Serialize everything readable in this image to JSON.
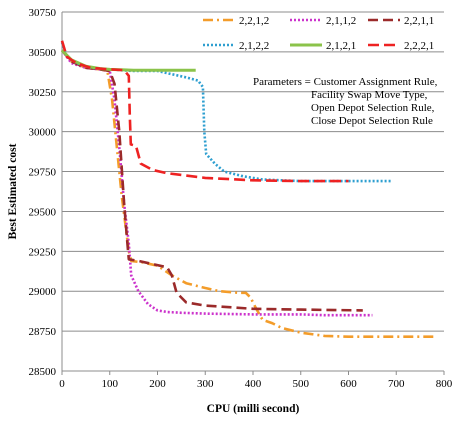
{
  "chart_data": {
    "type": "line",
    "title": "",
    "xlabel": "CPU (milli second)",
    "ylabel": "Best Estimated cost",
    "xlim": [
      0,
      800
    ],
    "ylim": [
      28500,
      30750
    ],
    "xticks": [
      0,
      100,
      200,
      300,
      400,
      500,
      600,
      700,
      800
    ],
    "yticks": [
      28500,
      28750,
      29000,
      29250,
      29500,
      29750,
      30000,
      30250,
      30500,
      30750
    ],
    "grid": "horizontal",
    "legend_position": "top-right",
    "annotation": [
      "Parameters = Customer Assignment Rule,",
      "Facility Swap Move Type,",
      "Open Depot Selection Rule,",
      "Close Depot Selection Rule"
    ],
    "series": [
      {
        "name": "2,2,1,2",
        "color": "#F39C2A",
        "dash": "dashdot",
        "points": [
          [
            0,
            30510
          ],
          [
            20,
            30440
          ],
          [
            50,
            30400
          ],
          [
            80,
            30390
          ],
          [
            95,
            30380
          ],
          [
            105,
            30200
          ],
          [
            115,
            29900
          ],
          [
            125,
            29600
          ],
          [
            140,
            29250
          ],
          [
            145,
            29190
          ],
          [
            170,
            29180
          ],
          [
            200,
            29160
          ],
          [
            230,
            29100
          ],
          [
            260,
            29050
          ],
          [
            300,
            29020
          ],
          [
            330,
            29000
          ],
          [
            370,
            28990
          ],
          [
            385,
            28990
          ],
          [
            395,
            28960
          ],
          [
            405,
            28900
          ],
          [
            420,
            28820
          ],
          [
            440,
            28800
          ],
          [
            460,
            28770
          ],
          [
            500,
            28740
          ],
          [
            550,
            28720
          ],
          [
            600,
            28715
          ],
          [
            700,
            28715
          ],
          [
            780,
            28715
          ]
        ]
      },
      {
        "name": "2,1,1,2",
        "color": "#CC33CC",
        "dash": "dot",
        "points": [
          [
            0,
            30510
          ],
          [
            20,
            30430
          ],
          [
            50,
            30400
          ],
          [
            80,
            30390
          ],
          [
            100,
            30380
          ],
          [
            110,
            30200
          ],
          [
            120,
            29900
          ],
          [
            130,
            29550
          ],
          [
            140,
            29300
          ],
          [
            145,
            29100
          ],
          [
            160,
            29000
          ],
          [
            180,
            28920
          ],
          [
            200,
            28880
          ],
          [
            220,
            28870
          ],
          [
            250,
            28865
          ],
          [
            300,
            28860
          ],
          [
            400,
            28855
          ],
          [
            500,
            28855
          ],
          [
            550,
            28850
          ],
          [
            600,
            28850
          ],
          [
            650,
            28850
          ]
        ]
      },
      {
        "name": "2,2,1,1",
        "color": "#9B2A2A",
        "dash": "longdash",
        "points": [
          [
            0,
            30510
          ],
          [
            20,
            30440
          ],
          [
            50,
            30400
          ],
          [
            80,
            30390
          ],
          [
            100,
            30380
          ],
          [
            110,
            30300
          ],
          [
            120,
            30000
          ],
          [
            130,
            29550
          ],
          [
            137,
            29300
          ],
          [
            140,
            29200
          ],
          [
            160,
            29190
          ],
          [
            190,
            29170
          ],
          [
            220,
            29150
          ],
          [
            230,
            29100
          ],
          [
            240,
            28990
          ],
          [
            260,
            28930
          ],
          [
            300,
            28910
          ],
          [
            400,
            28890
          ],
          [
            500,
            28885
          ],
          [
            630,
            28880
          ]
        ]
      },
      {
        "name": "2,1,2,2",
        "color": "#2E9FD0",
        "dash": "dotted",
        "points": [
          [
            0,
            30560
          ],
          [
            10,
            30470
          ],
          [
            30,
            30430
          ],
          [
            60,
            30400
          ],
          [
            100,
            30390
          ],
          [
            150,
            30380
          ],
          [
            200,
            30380
          ],
          [
            260,
            30340
          ],
          [
            285,
            30320
          ],
          [
            295,
            30280
          ],
          [
            298,
            30000
          ],
          [
            302,
            29860
          ],
          [
            320,
            29800
          ],
          [
            340,
            29750
          ],
          [
            380,
            29720
          ],
          [
            420,
            29700
          ],
          [
            500,
            29690
          ],
          [
            600,
            29690
          ],
          [
            690,
            29690
          ]
        ]
      },
      {
        "name": "2,1,2,1",
        "color": "#8BC34A",
        "dash": "solid",
        "points": [
          [
            0,
            30510
          ],
          [
            20,
            30450
          ],
          [
            50,
            30410
          ],
          [
            80,
            30395
          ],
          [
            100,
            30390
          ],
          [
            150,
            30385
          ],
          [
            200,
            30385
          ],
          [
            280,
            30385
          ]
        ]
      },
      {
        "name": "2,2,2,1",
        "color": "#EE2222",
        "dash": "dash",
        "points": [
          [
            0,
            30570
          ],
          [
            10,
            30470
          ],
          [
            30,
            30430
          ],
          [
            60,
            30400
          ],
          [
            100,
            30390
          ],
          [
            130,
            30385
          ],
          [
            140,
            30350
          ],
          [
            142,
            30100
          ],
          [
            144,
            29920
          ],
          [
            155,
            29910
          ],
          [
            165,
            29800
          ],
          [
            190,
            29760
          ],
          [
            220,
            29740
          ],
          [
            300,
            29710
          ],
          [
            400,
            29695
          ],
          [
            500,
            29690
          ],
          [
            600,
            29690
          ]
        ]
      }
    ]
  }
}
